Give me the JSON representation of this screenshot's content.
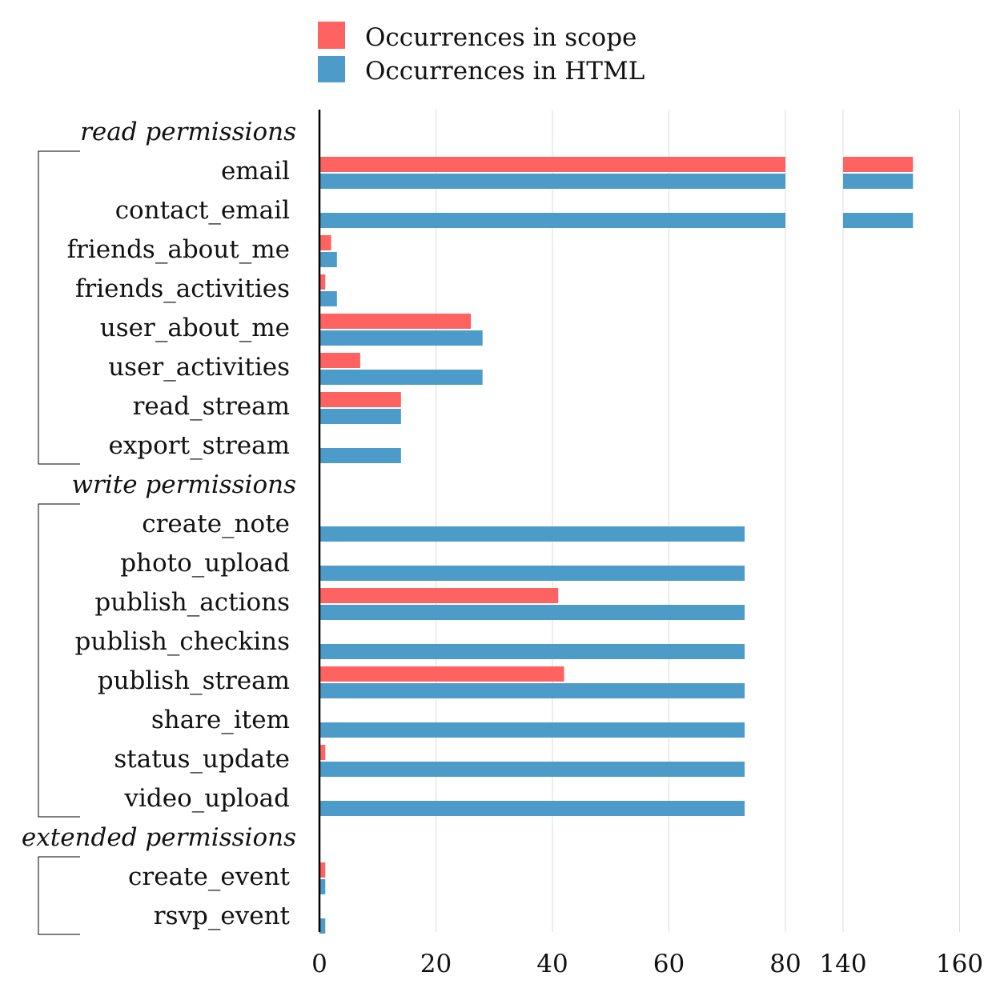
{
  "legend": {
    "scope_label": "Occurrences in scope",
    "html_label": "Occurrences in HTML"
  },
  "colors": {
    "scope": "#ff6361",
    "html": "#4c9bc8"
  },
  "chart_data": {
    "type": "bar",
    "orientation": "horizontal",
    "broken_axis": {
      "segments": [
        [
          0,
          80
        ],
        [
          140,
          160
        ]
      ]
    },
    "x_ticks": [
      "0",
      "20",
      "40",
      "60",
      "80",
      "140",
      "160"
    ],
    "grid": true,
    "legend_position": "top",
    "groups": [
      {
        "label": "read permissions",
        "items": [
          {
            "label": "email",
            "scope": 152,
            "html": 152
          },
          {
            "label": "contact_email",
            "scope": 0,
            "html": 152
          },
          {
            "label": "friends_about_me",
            "scope": 2,
            "html": 3
          },
          {
            "label": "friends_activities",
            "scope": 1,
            "html": 3
          },
          {
            "label": "user_about_me",
            "scope": 26,
            "html": 28
          },
          {
            "label": "user_activities",
            "scope": 7,
            "html": 28
          },
          {
            "label": "read_stream",
            "scope": 14,
            "html": 14
          },
          {
            "label": "export_stream",
            "scope": 0,
            "html": 14
          }
        ]
      },
      {
        "label": "write permissions",
        "items": [
          {
            "label": "create_note",
            "scope": 0,
            "html": 73
          },
          {
            "label": "photo_upload",
            "scope": 0,
            "html": 73
          },
          {
            "label": "publish_actions",
            "scope": 41,
            "html": 73
          },
          {
            "label": "publish_checkins",
            "scope": 0,
            "html": 73
          },
          {
            "label": "publish_stream",
            "scope": 42,
            "html": 73
          },
          {
            "label": "share_item",
            "scope": 0,
            "html": 73
          },
          {
            "label": "status_update",
            "scope": 1,
            "html": 73
          },
          {
            "label": "video_upload",
            "scope": 0,
            "html": 73
          }
        ]
      },
      {
        "label": "extended permissions",
        "items": [
          {
            "label": "create_event",
            "scope": 1,
            "html": 1
          },
          {
            "label": "rsvp_event",
            "scope": 0,
            "html": 1
          }
        ]
      }
    ]
  }
}
